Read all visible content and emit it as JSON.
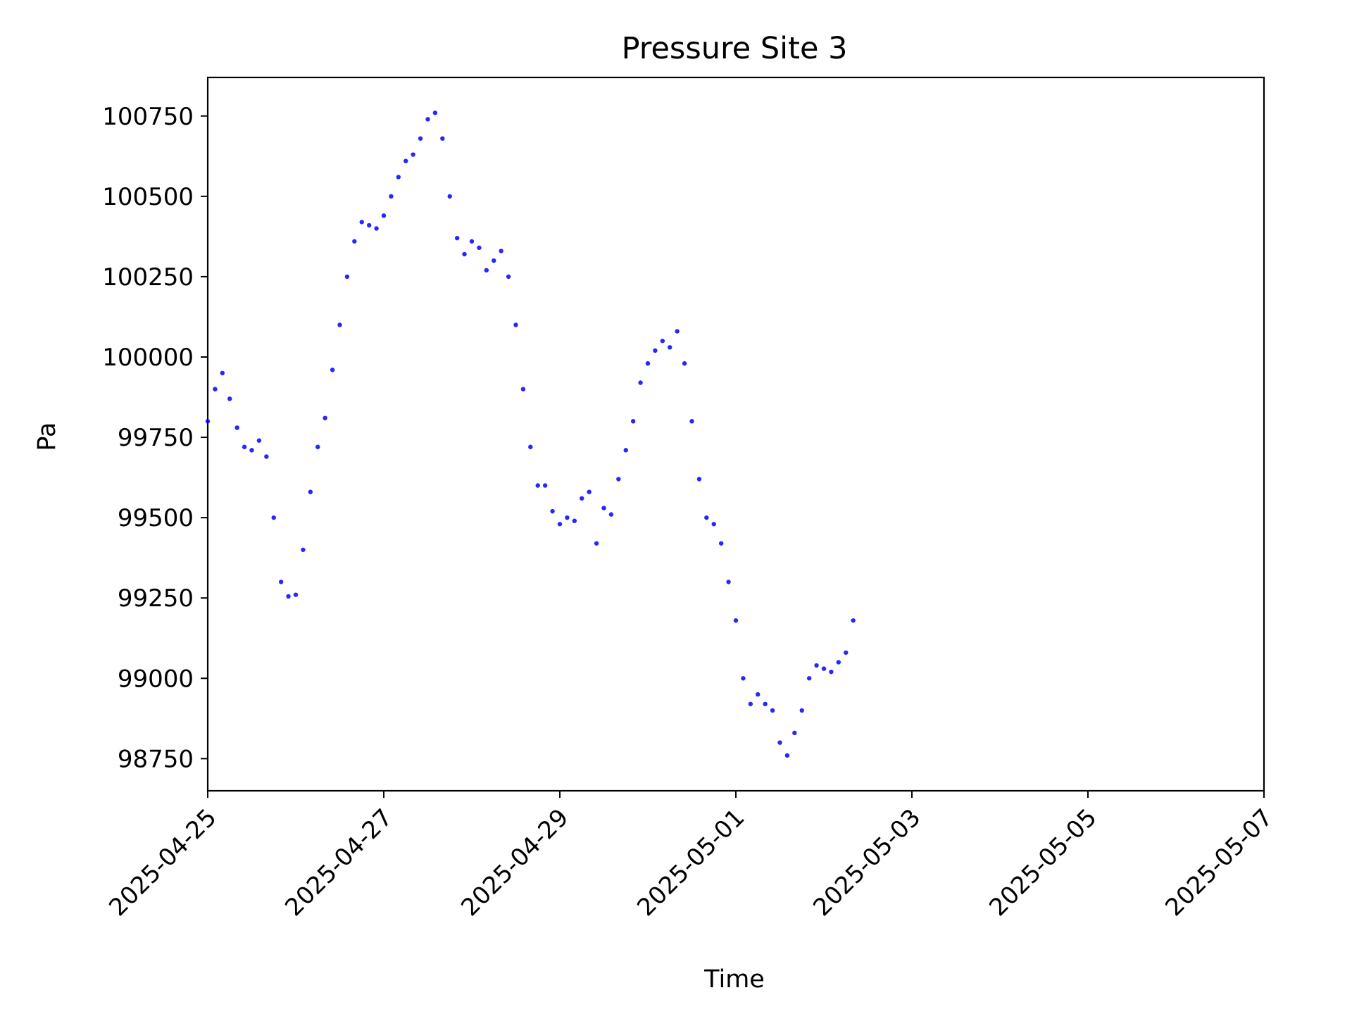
{
  "chart_data": {
    "type": "scatter",
    "title": "Pressure Site 3",
    "xlabel": "Time",
    "ylabel": "Pa",
    "x_axis_type": "date",
    "xlim": [
      "2025-04-25",
      "2025-05-07"
    ],
    "ylim": [
      98650,
      100870
    ],
    "x_ticks": [
      "2025-04-25",
      "2025-04-27",
      "2025-04-29",
      "2025-05-01",
      "2025-05-03",
      "2025-05-05",
      "2025-05-07"
    ],
    "y_ticks": [
      98750,
      99000,
      99250,
      99500,
      99750,
      100000,
      100250,
      100500,
      100750
    ],
    "grid": false,
    "marker_color": "#0000ff",
    "series": [
      {
        "points": [
          [
            "2025-04-25T00:00",
            99800
          ],
          [
            "2025-04-25T02:00",
            99900
          ],
          [
            "2025-04-25T04:00",
            99950
          ],
          [
            "2025-04-25T06:00",
            99870
          ],
          [
            "2025-04-25T08:00",
            99780
          ],
          [
            "2025-04-25T10:00",
            99720
          ],
          [
            "2025-04-25T12:00",
            99710
          ],
          [
            "2025-04-25T14:00",
            99740
          ],
          [
            "2025-04-25T16:00",
            99690
          ],
          [
            "2025-04-25T18:00",
            99500
          ],
          [
            "2025-04-25T20:00",
            99300
          ],
          [
            "2025-04-25T22:00",
            99255
          ],
          [
            "2025-04-26T00:00",
            99260
          ],
          [
            "2025-04-26T02:00",
            99400
          ],
          [
            "2025-04-26T04:00",
            99580
          ],
          [
            "2025-04-26T06:00",
            99720
          ],
          [
            "2025-04-26T08:00",
            99810
          ],
          [
            "2025-04-26T10:00",
            99960
          ],
          [
            "2025-04-26T12:00",
            100100
          ],
          [
            "2025-04-26T14:00",
            100250
          ],
          [
            "2025-04-26T16:00",
            100360
          ],
          [
            "2025-04-26T18:00",
            100420
          ],
          [
            "2025-04-26T20:00",
            100410
          ],
          [
            "2025-04-26T22:00",
            100400
          ],
          [
            "2025-04-27T00:00",
            100440
          ],
          [
            "2025-04-27T02:00",
            100500
          ],
          [
            "2025-04-27T04:00",
            100560
          ],
          [
            "2025-04-27T06:00",
            100610
          ],
          [
            "2025-04-27T08:00",
            100630
          ],
          [
            "2025-04-27T10:00",
            100680
          ],
          [
            "2025-04-27T12:00",
            100740
          ],
          [
            "2025-04-27T14:00",
            100760
          ],
          [
            "2025-04-27T16:00",
            100680
          ],
          [
            "2025-04-27T18:00",
            100500
          ],
          [
            "2025-04-27T20:00",
            100370
          ],
          [
            "2025-04-27T22:00",
            100320
          ],
          [
            "2025-04-28T00:00",
            100360
          ],
          [
            "2025-04-28T02:00",
            100340
          ],
          [
            "2025-04-28T04:00",
            100270
          ],
          [
            "2025-04-28T06:00",
            100300
          ],
          [
            "2025-04-28T08:00",
            100330
          ],
          [
            "2025-04-28T10:00",
            100250
          ],
          [
            "2025-04-28T12:00",
            100100
          ],
          [
            "2025-04-28T14:00",
            99900
          ],
          [
            "2025-04-28T16:00",
            99720
          ],
          [
            "2025-04-28T18:00",
            99600
          ],
          [
            "2025-04-28T20:00",
            99600
          ],
          [
            "2025-04-28T22:00",
            99520
          ],
          [
            "2025-04-29T00:00",
            99480
          ],
          [
            "2025-04-29T02:00",
            99500
          ],
          [
            "2025-04-29T04:00",
            99490
          ],
          [
            "2025-04-29T06:00",
            99560
          ],
          [
            "2025-04-29T08:00",
            99580
          ],
          [
            "2025-04-29T10:00",
            99420
          ],
          [
            "2025-04-29T12:00",
            99530
          ],
          [
            "2025-04-29T14:00",
            99510
          ],
          [
            "2025-04-29T16:00",
            99620
          ],
          [
            "2025-04-29T18:00",
            99710
          ],
          [
            "2025-04-29T20:00",
            99800
          ],
          [
            "2025-04-29T22:00",
            99920
          ],
          [
            "2025-04-30T00:00",
            99980
          ],
          [
            "2025-04-30T02:00",
            100020
          ],
          [
            "2025-04-30T04:00",
            100050
          ],
          [
            "2025-04-30T06:00",
            100030
          ],
          [
            "2025-04-30T08:00",
            100080
          ],
          [
            "2025-04-30T10:00",
            99980
          ],
          [
            "2025-04-30T12:00",
            99800
          ],
          [
            "2025-04-30T14:00",
            99620
          ],
          [
            "2025-04-30T16:00",
            99500
          ],
          [
            "2025-04-30T18:00",
            99480
          ],
          [
            "2025-04-30T20:00",
            99420
          ],
          [
            "2025-04-30T22:00",
            99300
          ],
          [
            "2025-05-01T00:00",
            99180
          ],
          [
            "2025-05-01T02:00",
            99000
          ],
          [
            "2025-05-01T04:00",
            98920
          ],
          [
            "2025-05-01T06:00",
            98950
          ],
          [
            "2025-05-01T08:00",
            98920
          ],
          [
            "2025-05-01T10:00",
            98900
          ],
          [
            "2025-05-01T12:00",
            98800
          ],
          [
            "2025-05-01T14:00",
            98760
          ],
          [
            "2025-05-01T16:00",
            98830
          ],
          [
            "2025-05-01T18:00",
            98900
          ],
          [
            "2025-05-01T20:00",
            99000
          ],
          [
            "2025-05-01T22:00",
            99040
          ],
          [
            "2025-05-02T00:00",
            99030
          ],
          [
            "2025-05-02T02:00",
            99020
          ],
          [
            "2025-05-02T04:00",
            99050
          ],
          [
            "2025-05-02T06:00",
            99080
          ],
          [
            "2025-05-02T08:00",
            99180
          ]
        ]
      }
    ]
  }
}
